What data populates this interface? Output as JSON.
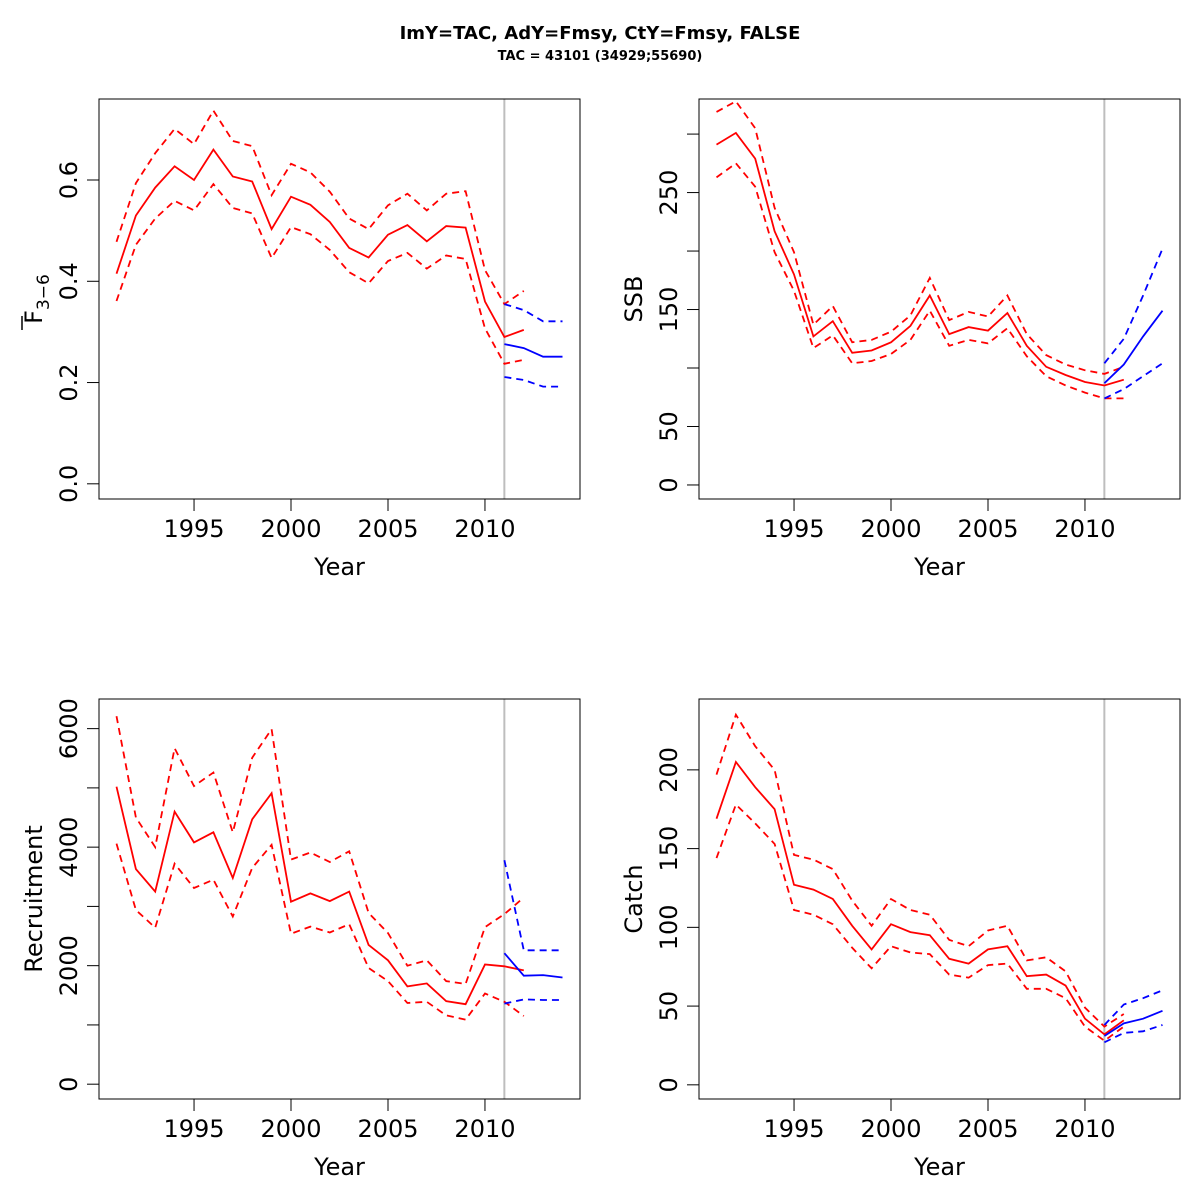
{
  "title": "ImY=TAC, AdY=Fmsy, CtY=Fmsy, FALSE",
  "subtitle": "TAC = 43101 (34929;55690)",
  "colors": {
    "estimate": "#ff0000",
    "forecast": "#0000ff",
    "divider": "#bebebe"
  },
  "chart_data": [
    {
      "type": "line",
      "ylabel": "F",
      "ylabel_sub": "3−6",
      "xlabel": "Year",
      "xlim": [
        1990.1,
        2014.9
      ],
      "ylim": [
        -0.03,
        0.76
      ],
      "xticks": [
        1995,
        2000,
        2005,
        2010
      ],
      "yticks": [
        0.0,
        0.2,
        0.4,
        0.6
      ],
      "ytick_labels": [
        "0.0",
        "0.2",
        "0.4",
        "0.6"
      ],
      "divider_x": 2011,
      "series": [
        {
          "role": "estimate",
          "style": "solid",
          "color": "red",
          "x": [
            1991,
            1992,
            1993,
            1994,
            1995,
            1996,
            1997,
            1998,
            1999,
            2000,
            2001,
            2002,
            2003,
            2004,
            2005,
            2006,
            2007,
            2008,
            2009,
            2010,
            2011,
            2012
          ],
          "y": [
            0.415,
            0.53,
            0.585,
            0.627,
            0.6,
            0.66,
            0.607,
            0.597,
            0.503,
            0.567,
            0.551,
            0.517,
            0.466,
            0.447,
            0.492,
            0.511,
            0.479,
            0.509,
            0.506,
            0.36,
            0.29,
            0.304
          ]
        },
        {
          "role": "estimate-upper",
          "style": "dashed",
          "color": "red",
          "x": [
            1991,
            1992,
            1993,
            1994,
            1995,
            1996,
            1997,
            1998,
            1999,
            2000,
            2001,
            2002,
            2003,
            2004,
            2005,
            2006,
            2007,
            2008,
            2009,
            2010,
            2011,
            2012
          ],
          "y": [
            0.478,
            0.594,
            0.653,
            0.701,
            0.671,
            0.737,
            0.677,
            0.667,
            0.57,
            0.632,
            0.615,
            0.577,
            0.524,
            0.503,
            0.55,
            0.573,
            0.54,
            0.573,
            0.578,
            0.422,
            0.355,
            0.381
          ]
        },
        {
          "role": "estimate-lower",
          "style": "dashed",
          "color": "red",
          "x": [
            1991,
            1992,
            1993,
            1994,
            1995,
            1996,
            1997,
            1998,
            1999,
            2000,
            2001,
            2002,
            2003,
            2004,
            2005,
            2006,
            2007,
            2008,
            2009,
            2010,
            2011,
            2012
          ],
          "y": [
            0.361,
            0.472,
            0.524,
            0.559,
            0.54,
            0.592,
            0.545,
            0.534,
            0.446,
            0.507,
            0.493,
            0.462,
            0.418,
            0.396,
            0.44,
            0.456,
            0.425,
            0.451,
            0.444,
            0.307,
            0.237,
            0.245
          ]
        },
        {
          "role": "forecast",
          "style": "solid",
          "color": "blue",
          "x": [
            2011,
            2012,
            2013,
            2014
          ],
          "y": [
            0.276,
            0.268,
            0.251,
            0.251
          ]
        },
        {
          "role": "forecast-upper",
          "style": "dashed",
          "color": "blue",
          "x": [
            2011,
            2012,
            2013,
            2014
          ],
          "y": [
            0.355,
            0.343,
            0.321,
            0.321
          ]
        },
        {
          "role": "forecast-lower",
          "style": "dashed",
          "color": "blue",
          "x": [
            2011,
            2012,
            2013,
            2014
          ],
          "y": [
            0.211,
            0.205,
            0.192,
            0.192
          ]
        }
      ]
    },
    {
      "type": "line",
      "ylabel": "SSB",
      "xlabel": "Year",
      "xlim": [
        1990.1,
        2014.9
      ],
      "ylim": [
        -12,
        330
      ],
      "xticks": [
        1995,
        2000,
        2005,
        2010
      ],
      "yticks": [
        0,
        50,
        150,
        250
      ],
      "ytick_labels": [
        "0",
        "50",
        "150",
        "250"
      ],
      "yticks_minor": [
        100,
        200,
        300
      ],
      "divider_x": 2011,
      "series": [
        {
          "role": "estimate",
          "style": "solid",
          "color": "red",
          "x": [
            1991,
            1992,
            1993,
            1994,
            1995,
            1996,
            1997,
            1998,
            1999,
            2000,
            2001,
            2002,
            2003,
            2004,
            2005,
            2006,
            2007,
            2008,
            2009,
            2010,
            2011,
            2012
          ],
          "y": [
            291,
            301,
            279,
            217,
            180,
            127,
            140,
            113,
            115,
            122,
            136,
            162,
            129,
            135,
            132,
            147,
            119,
            101,
            94,
            88,
            85,
            90
          ]
        },
        {
          "role": "estimate-upper",
          "style": "dashed",
          "color": "red",
          "x": [
            1991,
            1992,
            1993,
            1994,
            1995,
            1996,
            1997,
            1998,
            1999,
            2000,
            2001,
            2002,
            2003,
            2004,
            2005,
            2006,
            2007,
            2008,
            2009,
            2010,
            2011,
            2012
          ],
          "y": [
            319,
            328,
            305,
            237,
            199,
            137,
            153,
            122,
            124,
            131,
            145,
            177,
            141,
            148,
            144,
            162,
            129,
            111,
            103,
            98,
            95,
            101
          ]
        },
        {
          "role": "estimate-lower",
          "style": "dashed",
          "color": "red",
          "x": [
            1991,
            1992,
            1993,
            1994,
            1995,
            1996,
            1997,
            1998,
            1999,
            2000,
            2001,
            2002,
            2003,
            2004,
            2005,
            2006,
            2007,
            2008,
            2009,
            2010,
            2011,
            2012
          ],
          "y": [
            263,
            275,
            255,
            199,
            166,
            117,
            128,
            104,
            106,
            112,
            124,
            149,
            119,
            124,
            121,
            134,
            110,
            93,
            85,
            79,
            74,
            74
          ]
        },
        {
          "role": "forecast",
          "style": "solid",
          "color": "blue",
          "x": [
            2011,
            2012,
            2013,
            2014
          ],
          "y": [
            87,
            103,
            127,
            149
          ]
        },
        {
          "role": "forecast-upper",
          "style": "dashed",
          "color": "blue",
          "x": [
            2011,
            2012,
            2013,
            2014
          ],
          "y": [
            104,
            125,
            162,
            202
          ]
        },
        {
          "role": "forecast-lower",
          "style": "dashed",
          "color": "blue",
          "x": [
            2011,
            2012,
            2013,
            2014
          ],
          "y": [
            74,
            82,
            93,
            104
          ]
        }
      ]
    },
    {
      "type": "line",
      "ylabel": "Recruitment",
      "xlabel": "Year",
      "xlim": [
        1990.1,
        2014.9
      ],
      "ylim": [
        -250,
        6500
      ],
      "xticks": [
        1995,
        2000,
        2005,
        2010
      ],
      "yticks": [
        0,
        2000,
        4000,
        6000
      ],
      "ytick_labels": [
        "0",
        "2000",
        "4000",
        "6000"
      ],
      "yticks_minor": [
        1000,
        3000,
        5000
      ],
      "divider_x": 2011,
      "series": [
        {
          "role": "estimate",
          "style": "solid",
          "color": "red",
          "x": [
            1991,
            1992,
            1993,
            1994,
            1995,
            1996,
            1997,
            1998,
            1999,
            2000,
            2001,
            2002,
            2003,
            2004,
            2005,
            2006,
            2007,
            2008,
            2009,
            2010,
            2011,
            2012
          ],
          "y": [
            5020,
            3630,
            3250,
            4600,
            4080,
            4250,
            3480,
            4470,
            4910,
            3080,
            3220,
            3090,
            3250,
            2350,
            2090,
            1650,
            1700,
            1400,
            1350,
            2020,
            1990,
            1920
          ]
        },
        {
          "role": "estimate-upper",
          "style": "dashed",
          "color": "red",
          "x": [
            1991,
            1992,
            1993,
            1994,
            1995,
            1996,
            1997,
            1998,
            1999,
            2000,
            2001,
            2002,
            2003,
            2004,
            2005,
            2006,
            2007,
            2008,
            2009,
            2010,
            2011,
            2012
          ],
          "y": [
            6210,
            4500,
            4000,
            5670,
            5030,
            5260,
            4250,
            5510,
            5990,
            3790,
            3910,
            3750,
            3930,
            2890,
            2550,
            2000,
            2090,
            1740,
            1690,
            2650,
            2870,
            3150
          ]
        },
        {
          "role": "estimate-lower",
          "style": "dashed",
          "color": "red",
          "x": [
            1991,
            1992,
            1993,
            1994,
            1995,
            1996,
            1997,
            1998,
            1999,
            2000,
            2001,
            2002,
            2003,
            2004,
            2005,
            2006,
            2007,
            2008,
            2009,
            2010,
            2011,
            2012
          ],
          "y": [
            4060,
            2940,
            2640,
            3720,
            3310,
            3450,
            2830,
            3650,
            4040,
            2540,
            2660,
            2560,
            2700,
            1960,
            1740,
            1370,
            1390,
            1160,
            1090,
            1530,
            1390,
            1150
          ]
        },
        {
          "role": "forecast",
          "style": "solid",
          "color": "blue",
          "x": [
            2011,
            2012,
            2013,
            2014
          ],
          "y": [
            2210,
            1830,
            1840,
            1800
          ]
        },
        {
          "role": "forecast-upper",
          "style": "dashed",
          "color": "blue",
          "x": [
            2011,
            2012,
            2013,
            2014
          ],
          "y": [
            3780,
            2260,
            2260,
            2260
          ]
        },
        {
          "role": "forecast-lower",
          "style": "dashed",
          "color": "blue",
          "x": [
            2011,
            2012,
            2013,
            2014
          ],
          "y": [
            1360,
            1430,
            1420,
            1420
          ]
        }
      ]
    },
    {
      "type": "line",
      "ylabel": "Catch",
      "xlabel": "Year",
      "xlim": [
        1990.1,
        2014.9
      ],
      "ylim": [
        -9,
        245
      ],
      "xticks": [
        1995,
        2000,
        2005,
        2010
      ],
      "yticks": [
        0,
        50,
        100,
        150,
        200
      ],
      "ytick_labels": [
        "0",
        "50",
        "100",
        "150",
        "200"
      ],
      "divider_x": 2011,
      "series": [
        {
          "role": "estimate",
          "style": "solid",
          "color": "red",
          "x": [
            1991,
            1992,
            1993,
            1994,
            1995,
            1996,
            1997,
            1998,
            1999,
            2000,
            2001,
            2002,
            2003,
            2004,
            2005,
            2006,
            2007,
            2008,
            2009,
            2010,
            2011,
            2012
          ],
          "y": [
            169,
            205,
            189,
            175,
            127,
            124,
            118,
            101,
            86,
            102,
            97,
            95,
            80,
            77,
            86,
            88,
            69,
            70,
            63,
            42,
            32,
            41
          ]
        },
        {
          "role": "estimate-upper",
          "style": "dashed",
          "color": "red",
          "x": [
            1991,
            1992,
            1993,
            1994,
            1995,
            1996,
            1997,
            1998,
            1999,
            2000,
            2001,
            2002,
            2003,
            2004,
            2005,
            2006,
            2007,
            2008,
            2009,
            2010,
            2011,
            2012
          ],
          "y": [
            197,
            235,
            215,
            200,
            146,
            143,
            137,
            117,
            101,
            118,
            111,
            108,
            92,
            88,
            98,
            101,
            79,
            81,
            72,
            49,
            37,
            45
          ]
        },
        {
          "role": "estimate-lower",
          "style": "dashed",
          "color": "red",
          "x": [
            1991,
            1992,
            1993,
            1994,
            1995,
            1996,
            1997,
            1998,
            1999,
            2000,
            2001,
            2002,
            2003,
            2004,
            2005,
            2006,
            2007,
            2008,
            2009,
            2010,
            2011,
            2012
          ],
          "y": [
            144,
            178,
            166,
            153,
            111,
            108,
            102,
            87,
            74,
            88,
            84,
            83,
            70,
            68,
            76,
            77,
            61,
            61,
            55,
            37,
            28,
            37
          ]
        },
        {
          "role": "forecast",
          "style": "solid",
          "color": "blue",
          "x": [
            2011,
            2012,
            2013,
            2014
          ],
          "y": [
            31,
            39,
            42,
            47
          ]
        },
        {
          "role": "forecast-upper",
          "style": "dashed",
          "color": "blue",
          "x": [
            2011,
            2012,
            2013,
            2014
          ],
          "y": [
            38,
            51,
            55,
            60
          ]
        },
        {
          "role": "forecast-lower",
          "style": "dashed",
          "color": "blue",
          "x": [
            2011,
            2012,
            2013,
            2014
          ],
          "y": [
            27,
            33,
            34,
            38
          ]
        }
      ]
    }
  ]
}
